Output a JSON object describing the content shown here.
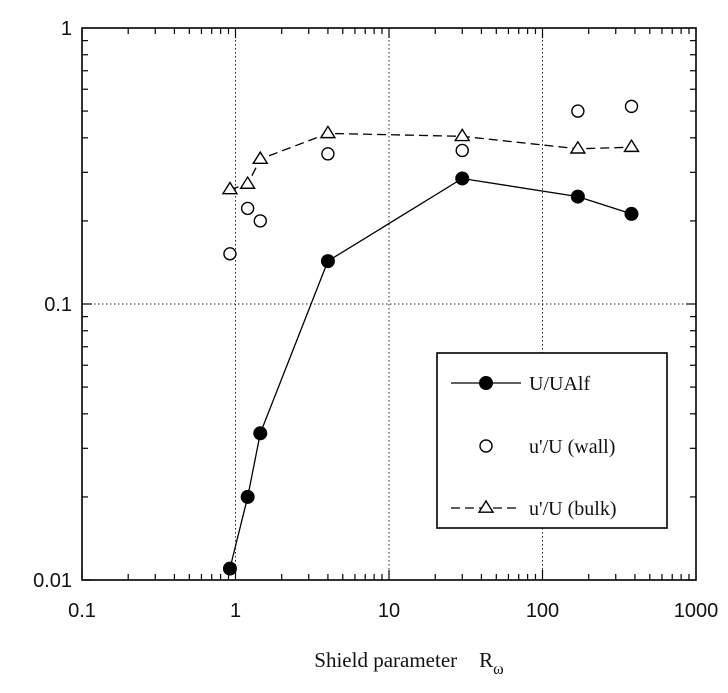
{
  "chart_data": {
    "type": "scatter",
    "title": "",
    "xlabel": "Shield parameter",
    "xlabel_symbol": "R",
    "xlabel_subscript": "ω",
    "ylabel": "",
    "x_scale": "log",
    "y_scale": "log",
    "xlim": [
      0.1,
      1000
    ],
    "ylim": [
      0.01,
      1
    ],
    "x_ticks": [
      {
        "value": 0.1,
        "label": "0.1"
      },
      {
        "value": 1,
        "label": "1"
      },
      {
        "value": 10,
        "label": "10"
      },
      {
        "value": 100,
        "label": "100"
      },
      {
        "value": 1000,
        "label": "1000"
      }
    ],
    "y_ticks": [
      {
        "value": 0.01,
        "label": "0.01"
      },
      {
        "value": 0.1,
        "label": "0.1"
      },
      {
        "value": 1,
        "label": "1"
      }
    ],
    "grid": true,
    "legend_position": "lower-right",
    "series": [
      {
        "name": "U/UAlf",
        "marker": "filled-circle",
        "line": "solid",
        "points": [
          [
            0.92,
            0.011
          ],
          [
            1.2,
            0.02
          ],
          [
            1.45,
            0.034
          ],
          [
            4.0,
            0.143
          ],
          [
            30,
            0.285
          ],
          [
            170,
            0.245
          ],
          [
            380,
            0.212
          ]
        ]
      },
      {
        "name": "u'/U (wall)",
        "marker": "open-circle",
        "line": "none",
        "points": [
          [
            0.92,
            0.152
          ],
          [
            1.2,
            0.222
          ],
          [
            1.45,
            0.2
          ],
          [
            4.0,
            0.35
          ],
          [
            30,
            0.36
          ],
          [
            170,
            0.5
          ],
          [
            380,
            0.52
          ]
        ]
      },
      {
        "name": "u'/U (bulk)",
        "marker": "open-triangle",
        "line": "dashed",
        "points": [
          [
            0.92,
            0.26
          ],
          [
            1.2,
            0.272
          ],
          [
            1.45,
            0.335
          ],
          [
            4.0,
            0.415
          ],
          [
            30,
            0.405
          ],
          [
            170,
            0.365
          ],
          [
            380,
            0.37
          ]
        ]
      }
    ]
  }
}
